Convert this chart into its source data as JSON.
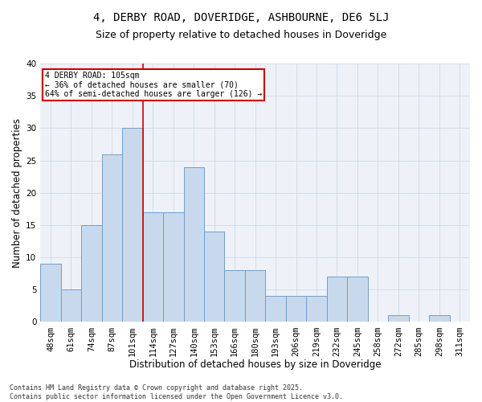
{
  "title_line1": "4, DERBY ROAD, DOVERIDGE, ASHBOURNE, DE6 5LJ",
  "title_line2": "Size of property relative to detached houses in Doveridge",
  "xlabel": "Distribution of detached houses by size in Doveridge",
  "ylabel": "Number of detached properties",
  "bar_labels": [
    "48sqm",
    "61sqm",
    "74sqm",
    "87sqm",
    "101sqm",
    "114sqm",
    "127sqm",
    "140sqm",
    "153sqm",
    "166sqm",
    "180sqm",
    "193sqm",
    "206sqm",
    "219sqm",
    "232sqm",
    "245sqm",
    "258sqm",
    "272sqm",
    "285sqm",
    "298sqm",
    "311sqm"
  ],
  "bar_values": [
    9,
    5,
    15,
    26,
    30,
    17,
    17,
    24,
    14,
    8,
    8,
    4,
    4,
    4,
    7,
    7,
    0,
    1,
    0,
    1,
    0
  ],
  "bar_color": "#c9d9ed",
  "bar_edge_color": "#6f9ec9",
  "subject_bar_index": 4,
  "annotation_text": "4 DERBY ROAD: 105sqm\n← 36% of detached houses are smaller (70)\n64% of semi-detached houses are larger (126) →",
  "annotation_box_color": "#ffffff",
  "annotation_box_edge": "#cc0000",
  "vline_color": "#cc0000",
  "grid_color": "#d0d8e8",
  "background_color": "#eef2f8",
  "ylim": [
    0,
    40
  ],
  "yticks": [
    0,
    5,
    10,
    15,
    20,
    25,
    30,
    35,
    40
  ],
  "footer_text": "Contains HM Land Registry data © Crown copyright and database right 2025.\nContains public sector information licensed under the Open Government Licence v3.0.",
  "title_fontsize": 10,
  "subtitle_fontsize": 9,
  "tick_fontsize": 7.5,
  "xlabel_fontsize": 8.5,
  "ylabel_fontsize": 8.5,
  "annotation_fontsize": 7,
  "footer_fontsize": 6
}
